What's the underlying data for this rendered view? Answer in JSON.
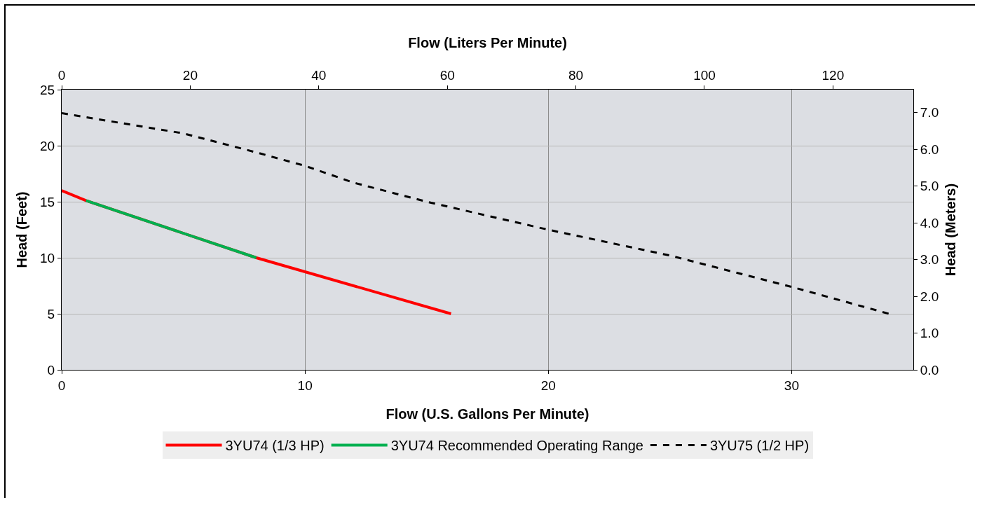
{
  "chart_data": {
    "type": "line",
    "xlabel": "Flow (U.S. Gallons Per Minute)",
    "ylabel": "Head (Feet)",
    "x2label": "Flow (Liters Per Minute)",
    "y2label": "Head (Meters)",
    "xlim": [
      0,
      35
    ],
    "xticks": [
      0,
      10,
      20,
      30
    ],
    "ylim": [
      0,
      25
    ],
    "yticks": [
      0,
      5,
      10,
      15,
      20,
      25
    ],
    "x2lim": [
      0,
      132.5
    ],
    "x2ticks": [
      0,
      20,
      40,
      60,
      80,
      100,
      120
    ],
    "y2lim": [
      0,
      7.62
    ],
    "y2ticks": [
      {
        "value": 0,
        "label": "0.0"
      },
      {
        "value": 1,
        "label": "1.0"
      },
      {
        "value": 2,
        "label": "2.0"
      },
      {
        "value": 3,
        "label": "3.0"
      },
      {
        "value": 4,
        "label": "4.0"
      },
      {
        "value": 5,
        "label": "5.0"
      },
      {
        "value": 6,
        "label": "6.0"
      },
      {
        "value": 7,
        "label": "7.0"
      }
    ],
    "grid": true,
    "legend": "bottom",
    "marker": "none",
    "series": [
      {
        "name": "3YU74 (1/3 HP)",
        "color": "#ff0000",
        "x": [
          0,
          1,
          8,
          16
        ],
        "values": [
          16,
          15.1,
          10,
          5
        ],
        "line_style": "solid"
      },
      {
        "name": "3YU74 Recommended Operating Range",
        "color": "#00b050",
        "x": [
          1,
          8
        ],
        "values": [
          15.1,
          10
        ],
        "line_style": "solid"
      },
      {
        "name": "3YU75 (1/2 HP)",
        "color": "#000000",
        "x": [
          0,
          5,
          8,
          10,
          12,
          15,
          16,
          20,
          25,
          30,
          34
        ],
        "values": [
          22.9,
          21.1,
          19.4,
          18.2,
          16.7,
          15,
          14.5,
          12.5,
          10.2,
          7.4,
          5
        ],
        "line_style": "dashed"
      }
    ]
  }
}
